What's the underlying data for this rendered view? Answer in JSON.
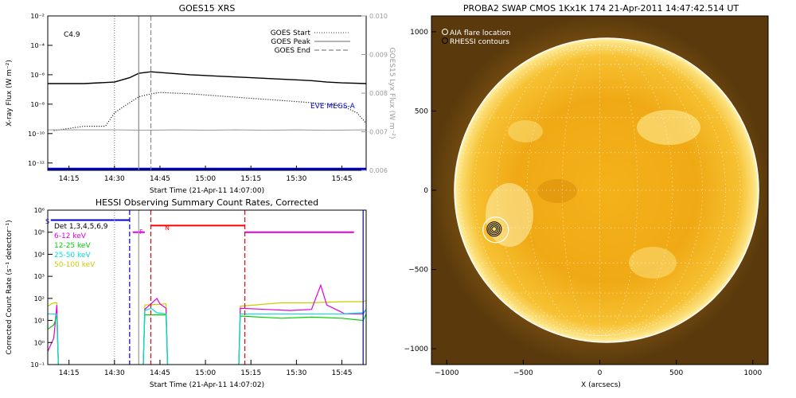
{
  "chart_data": [
    {
      "type": "line",
      "title": "GOES15 XRS",
      "xlabel": "Start Time (21-Apr-11 14:07:00)",
      "ylabel": "X-ray Flux (W m⁻²)",
      "ylabel_right": "GOES15 Lyx Flux (W m⁻²)",
      "x_ticks": [
        "14:15",
        "14:30",
        "14:45",
        "15:00",
        "15:15",
        "15:30",
        "15:45"
      ],
      "y_ticks": [
        "10⁻¹²",
        "10⁻¹⁰",
        "10⁻⁸",
        "10⁻⁶",
        "10⁻⁴",
        "10⁻²"
      ],
      "y_ticks_right": [
        "0.006",
        "0.007",
        "0.008",
        "0.009",
        "0.010"
      ],
      "xlim_min": [
        8,
        113
      ],
      "ylim_log10": [
        -12.5,
        -2
      ],
      "ylim_right": [
        0.006,
        0.01
      ],
      "annotation": "C4.9",
      "overlay_label": "EVE MEGS-A",
      "legend_placement": "top-right",
      "legend": [
        {
          "label": "GOES Start",
          "style": "dotted"
        },
        {
          "label": "GOES Peak",
          "style": "solid"
        },
        {
          "label": "GOES End",
          "style": "dashed"
        }
      ],
      "vlines_min": {
        "start": 30,
        "peak": 38,
        "end": 42
      },
      "series": [
        {
          "key": "long",
          "color": "#000000",
          "x": [
            8,
            20,
            30,
            35,
            38,
            42,
            45,
            55,
            65,
            75,
            85,
            95,
            100,
            105,
            113
          ],
          "y_log10": [
            -6.6,
            -6.6,
            -6.5,
            -6.2,
            -5.9,
            -5.8,
            -5.85,
            -6.0,
            -6.1,
            -6.2,
            -6.3,
            -6.4,
            -6.5,
            -6.55,
            -6.6
          ]
        },
        {
          "key": "short",
          "color": "#000000",
          "x": [
            10,
            20,
            27,
            30,
            32,
            35,
            38,
            42,
            45,
            55,
            65,
            75,
            85,
            95,
            100,
            105,
            110,
            113
          ],
          "y_log10": [
            -9.8,
            -9.5,
            -9.5,
            -8.6,
            -8.3,
            -7.9,
            -7.5,
            -7.3,
            -7.2,
            -7.3,
            -7.45,
            -7.6,
            -7.75,
            -7.9,
            -8.0,
            -8.1,
            -8.6,
            -9.3
          ]
        },
        {
          "key": "lyman",
          "color": "#999999",
          "x": [
            8,
            20,
            30,
            40,
            50,
            60,
            70,
            80,
            90,
            100,
            113
          ],
          "y_lin": [
            0.00705,
            0.00705,
            0.00705,
            0.00704,
            0.00705,
            0.00704,
            0.00705,
            0.00704,
            0.00705,
            0.00704,
            0.00705
          ]
        },
        {
          "key": "eve",
          "color": "#0000cc",
          "x": [
            8,
            113
          ],
          "y_log10": [
            -12.4,
            -12.4
          ]
        }
      ]
    },
    {
      "type": "line",
      "title": "HESSI Observing Summary Count Rates, Corrected",
      "xlabel": "Start Time (21-Apr-11 14:07:02)",
      "ylabel": "Corrected Count Rate (s⁻¹ detector⁻¹)",
      "x_ticks": [
        "14:15",
        "14:30",
        "14:45",
        "15:00",
        "15:15",
        "15:30",
        "15:45"
      ],
      "y_ticks": [
        "10⁻¹",
        "10⁰",
        "10¹",
        "10²",
        "10³",
        "10⁴",
        "10⁵",
        "10⁶"
      ],
      "xlim_min": [
        8,
        113
      ],
      "ylim_log10": [
        -1,
        6
      ],
      "flag_labels": [
        "S",
        "F",
        "N"
      ],
      "legend_placement": "top-left",
      "legend": [
        {
          "label": "Det 1,3,4,5,6,9",
          "color": "#000000"
        },
        {
          "label": "6-12 keV",
          "color": "#e000e0"
        },
        {
          "label": "12-25 keV",
          "color": "#00d000"
        },
        {
          "label": "25-50 keV",
          "color": "#00dddd"
        },
        {
          "label": "50-100 keV",
          "color": "#cccc00"
        }
      ],
      "series": [
        {
          "key": "50-100",
          "color": "#cccc00",
          "segments": [
            {
              "x": [
                8,
                10,
                11,
                11.5
              ],
              "y": [
                1.65,
                1.8,
                1.8,
                -1
              ]
            },
            {
              "x": [
                39.5,
                40,
                47,
                47.5
              ],
              "y": [
                -1,
                1.7,
                1.75,
                -1
              ]
            },
            {
              "x": [
                71,
                71.5,
                85,
                95,
                105,
                112,
                113
              ],
              "y": [
                -1,
                1.65,
                1.8,
                1.8,
                1.85,
                1.85,
                1.9
              ]
            }
          ]
        },
        {
          "key": "6-12",
          "color": "#e000e0",
          "segments": [
            {
              "x": [
                8,
                10,
                11,
                11.5
              ],
              "y": [
                -0.4,
                0.2,
                1.7,
                -1
              ]
            },
            {
              "x": [
                39.5,
                40,
                42,
                44,
                45,
                47,
                47.5
              ],
              "y": [
                -1,
                1.5,
                1.75,
                2.0,
                1.75,
                1.55,
                -1
              ]
            },
            {
              "x": [
                71,
                71.5,
                80,
                88,
                95,
                98,
                100,
                103,
                106,
                112,
                113
              ],
              "y": [
                -1,
                1.55,
                1.5,
                1.45,
                1.5,
                2.6,
                1.7,
                1.5,
                1.3,
                1.3,
                1.5
              ]
            }
          ]
        },
        {
          "key": "12-25",
          "color": "#00d000",
          "segments": [
            {
              "x": [
                8,
                10,
                11,
                11.5
              ],
              "y": [
                0.6,
                0.8,
                1.2,
                -1
              ]
            },
            {
              "x": [
                39.5,
                40,
                44,
                47,
                47.5
              ],
              "y": [
                -1,
                1.25,
                1.25,
                1.25,
                -1
              ]
            },
            {
              "x": [
                71,
                71.5,
                85,
                95,
                105,
                112,
                113
              ],
              "y": [
                -1,
                1.2,
                1.1,
                1.15,
                1.1,
                1.0,
                1.3
              ]
            }
          ]
        },
        {
          "key": "25-50",
          "color": "#00dddd",
          "segments": [
            {
              "x": [
                8,
                11,
                11.5
              ],
              "y": [
                1.3,
                1.3,
                -1
              ]
            },
            {
              "x": [
                39.5,
                40,
                42,
                44,
                47,
                47.5
              ],
              "y": [
                -1,
                1.45,
                1.55,
                1.35,
                1.3,
                -1
              ]
            },
            {
              "x": [
                71,
                71.5,
                85,
                95,
                105,
                112,
                113
              ],
              "y": [
                -1,
                1.3,
                1.3,
                1.3,
                1.3,
                1.35,
                1.5
              ]
            }
          ]
        }
      ],
      "state_bars": [
        {
          "key": "S",
          "color": "#0000cc",
          "x": [
            9,
            35
          ],
          "y_log10": 5.55
        },
        {
          "key": "F",
          "color": "#e000e0",
          "x": [
            36,
            40
          ],
          "y_log10": 5.0
        },
        {
          "key": "N",
          "color": "#ff0000",
          "x": [
            42,
            73
          ],
          "y_log10": 5.3
        },
        {
          "key": "fm",
          "color": "#e000e0",
          "x": [
            73,
            109
          ],
          "y_log10": 5.0
        }
      ],
      "vlines_min": {
        "s_end": 35,
        "flare_start": 30,
        "peak": 38,
        "n_start": 42,
        "n_end": 73,
        "right_end": 112
      },
      "vline_colors": {
        "s_end": "#0000cc",
        "flare_start": "#999999",
        "peak": "#999999",
        "n_start": "#ff0000",
        "n_end": "#ff0000",
        "right_end": "#0000cc"
      }
    },
    {
      "type": "heatmap",
      "title": "PROBA2 SWAP CMOS 1Kx1K 174 21-Apr-2011 14:47:42.514 UT",
      "xlabel": "X (arcsecs)",
      "ylabel": "",
      "x_ticks": [
        "−1000",
        "−500",
        "0",
        "500",
        "1000"
      ],
      "y_ticks": [
        "−1000",
        "−500",
        "0",
        "500",
        "1000"
      ],
      "xlim": [
        -1100,
        1100
      ],
      "ylim": [
        -1100,
        1100
      ],
      "legend": [
        {
          "label": "AIA flare location",
          "marker": "open-circle",
          "color": "#ffffff"
        },
        {
          "label": "RHESSI contours",
          "marker": "open-circle",
          "color": "#000000"
        }
      ],
      "solar_limb_radius_arcsec": 950,
      "aia_flare_location": {
        "x": -680,
        "y": -250
      },
      "rhessi_contour_center": {
        "x": -690,
        "y": -245
      }
    }
  ]
}
